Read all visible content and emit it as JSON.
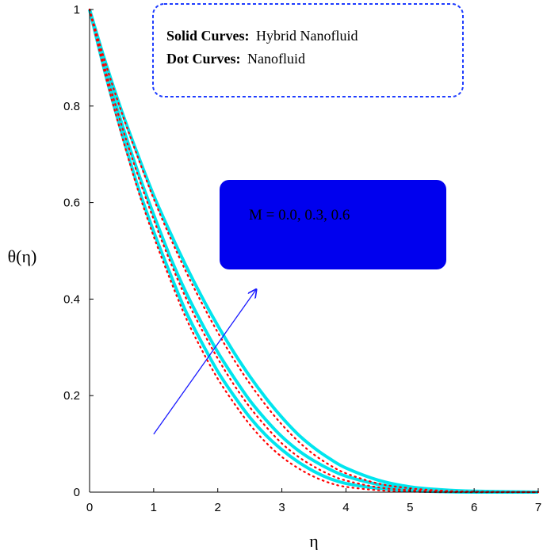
{
  "chart_data": {
    "type": "line",
    "title": "",
    "xlabel": "η",
    "ylabel": "θ(η)",
    "xlim": [
      0,
      7
    ],
    "ylim": [
      0,
      1
    ],
    "x_ticks": [
      0,
      1,
      2,
      3,
      4,
      5,
      6,
      7
    ],
    "y_ticks": [
      0,
      0.2,
      0.4,
      0.6,
      0.8,
      1
    ],
    "y_tick_labels": [
      "0",
      "0.2",
      "0.4",
      "0.6",
      "0.8",
      "1"
    ],
    "grid": false,
    "legend": {
      "placement": "top-center",
      "entries": [
        {
          "bold": "Solid Curves:",
          "text": "Hybrid Nanofluid",
          "style": "solid",
          "color": "#00e5ee"
        },
        {
          "bold": "Dot Curves:",
          "text": "Nanofluid",
          "style": "dotted",
          "color": "#ff0000"
        }
      ]
    },
    "annotation": {
      "text": "M = 0.0, 0.3, 0.6",
      "box_color": "#0000ee",
      "arrow_color": "#1a1aff",
      "arrow_from": [
        1.0,
        0.12
      ],
      "arrow_to": [
        2.6,
        0.42
      ]
    },
    "series": [
      {
        "style": "solid",
        "color": "#00e5ee",
        "x": [
          0,
          0.25,
          0.5,
          0.75,
          1,
          1.25,
          1.5,
          1.75,
          2,
          2.25,
          2.5,
          2.75,
          3,
          3.25,
          3.5,
          3.75,
          4,
          4.5,
          5,
          5.5,
          6,
          7
        ],
        "y": [
          1,
          0.865,
          0.745,
          0.635,
          0.54,
          0.455,
          0.375,
          0.31,
          0.25,
          0.2,
          0.155,
          0.118,
          0.088,
          0.063,
          0.043,
          0.028,
          0.018,
          0.008,
          0.003,
          0.001,
          0,
          0
        ]
      },
      {
        "style": "solid",
        "color": "#00e5ee",
        "x": [
          0,
          0.25,
          0.5,
          0.75,
          1,
          1.25,
          1.5,
          1.75,
          2,
          2.25,
          2.5,
          2.75,
          3,
          3.25,
          3.5,
          3.75,
          4,
          4.5,
          5,
          5.5,
          6,
          7
        ],
        "y": [
          1,
          0.875,
          0.765,
          0.665,
          0.575,
          0.49,
          0.415,
          0.35,
          0.29,
          0.238,
          0.19,
          0.15,
          0.115,
          0.087,
          0.065,
          0.047,
          0.033,
          0.016,
          0.007,
          0.003,
          0.001,
          0
        ]
      },
      {
        "style": "solid",
        "color": "#00e5ee",
        "x": [
          0,
          0.25,
          0.5,
          0.75,
          1,
          1.25,
          1.5,
          1.75,
          2,
          2.25,
          2.5,
          2.75,
          3,
          3.25,
          3.5,
          3.75,
          4,
          4.5,
          5,
          5.5,
          6,
          7
        ],
        "y": [
          1,
          0.89,
          0.79,
          0.7,
          0.615,
          0.54,
          0.47,
          0.405,
          0.345,
          0.29,
          0.24,
          0.195,
          0.155,
          0.12,
          0.092,
          0.069,
          0.05,
          0.025,
          0.011,
          0.005,
          0.002,
          0
        ]
      },
      {
        "style": "dotted",
        "color": "#ff0000",
        "x": [
          0,
          0.25,
          0.5,
          0.75,
          1,
          1.25,
          1.5,
          1.75,
          2,
          2.25,
          2.5,
          2.75,
          3,
          3.25,
          3.5,
          3.75,
          4,
          4.5,
          5,
          5.5,
          6,
          7
        ],
        "y": [
          1,
          0.862,
          0.74,
          0.628,
          0.53,
          0.443,
          0.362,
          0.295,
          0.235,
          0.185,
          0.14,
          0.103,
          0.073,
          0.05,
          0.032,
          0.019,
          0.011,
          0.004,
          0.001,
          0,
          0,
          0
        ]
      },
      {
        "style": "dotted",
        "color": "#ff0000",
        "x": [
          0,
          0.25,
          0.5,
          0.75,
          1,
          1.25,
          1.5,
          1.75,
          2,
          2.25,
          2.5,
          2.75,
          3,
          3.25,
          3.5,
          3.75,
          4,
          4.5,
          5,
          5.5,
          6,
          7
        ],
        "y": [
          1,
          0.873,
          0.76,
          0.658,
          0.565,
          0.48,
          0.403,
          0.337,
          0.277,
          0.223,
          0.176,
          0.136,
          0.101,
          0.074,
          0.053,
          0.036,
          0.024,
          0.01,
          0.004,
          0.001,
          0,
          0
        ]
      },
      {
        "style": "dotted",
        "color": "#ff0000",
        "x": [
          0,
          0.25,
          0.5,
          0.75,
          1,
          1.25,
          1.5,
          1.75,
          2,
          2.25,
          2.5,
          2.75,
          3,
          3.25,
          3.5,
          3.75,
          4,
          4.5,
          5,
          5.5,
          6,
          7
        ],
        "y": [
          1,
          0.888,
          0.787,
          0.695,
          0.608,
          0.53,
          0.458,
          0.392,
          0.331,
          0.275,
          0.225,
          0.18,
          0.14,
          0.106,
          0.078,
          0.056,
          0.039,
          0.018,
          0.008,
          0.003,
          0.001,
          0
        ]
      }
    ]
  }
}
